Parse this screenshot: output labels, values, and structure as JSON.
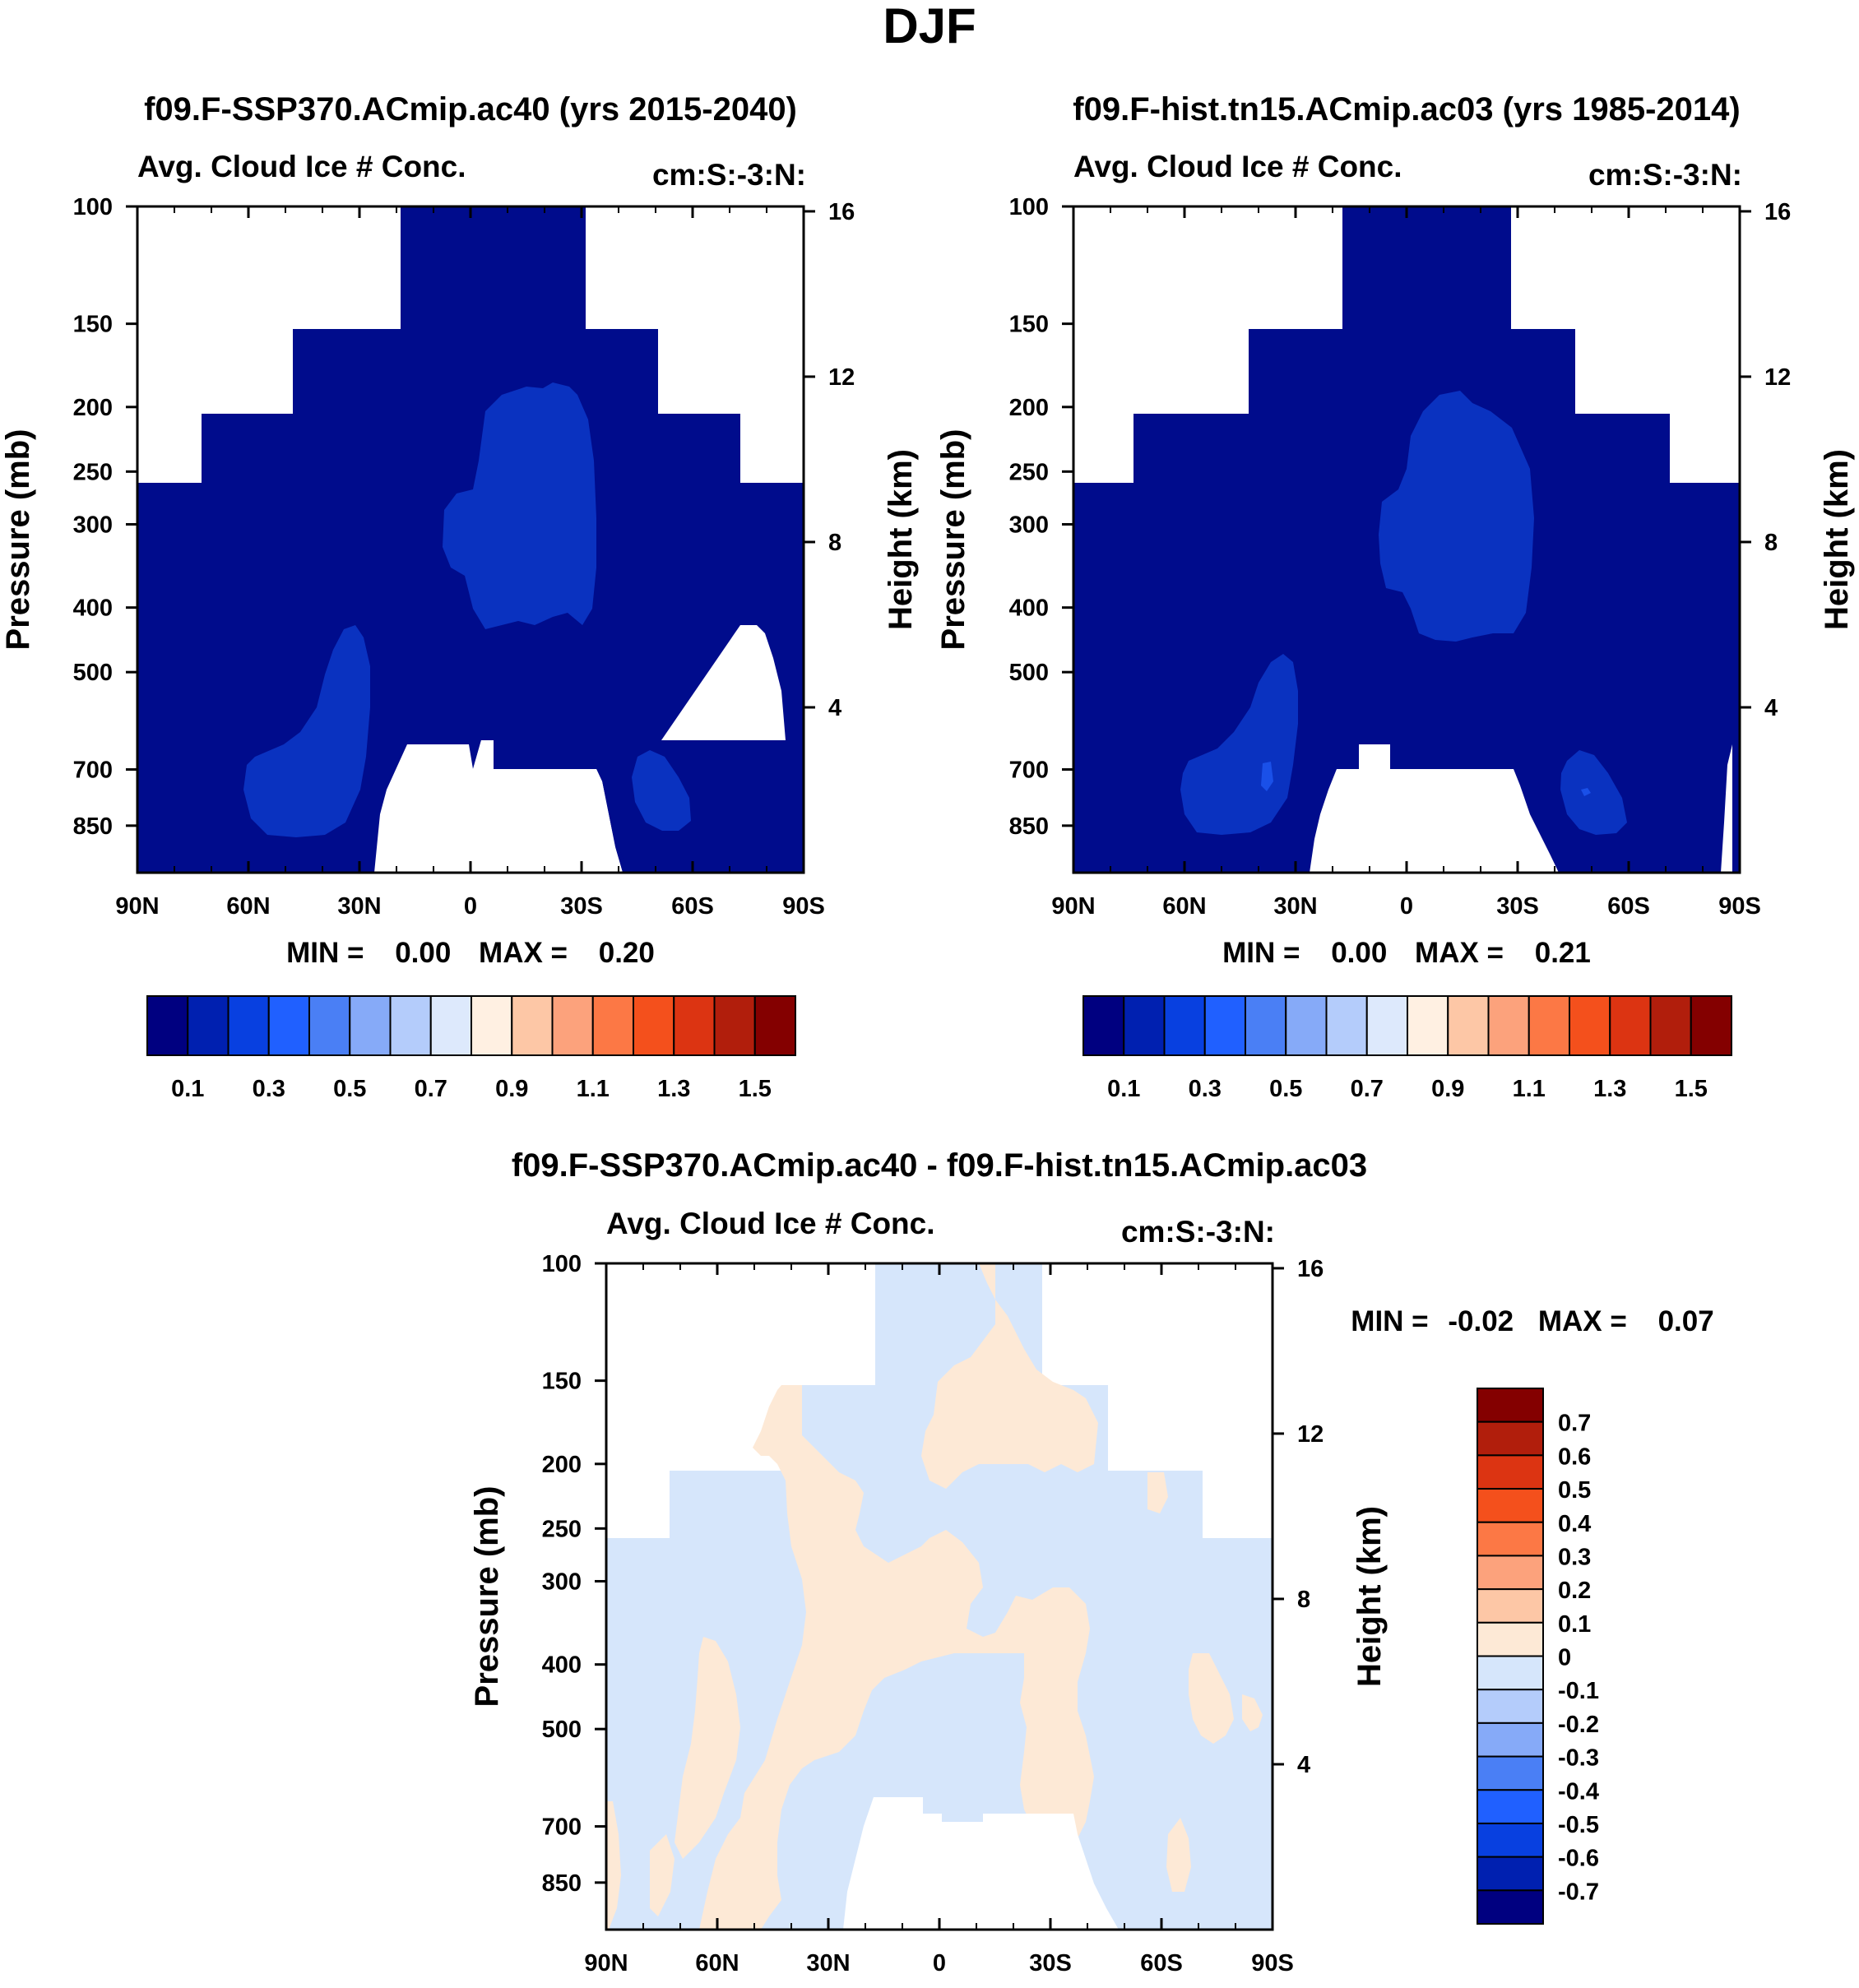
{
  "figure": {
    "title": "DJF"
  },
  "colors": {
    "abs_palette": [
      "#000080",
      "#0020b0",
      "#0840e0",
      "#2060ff",
      "#4a7ff5",
      "#86aaf8",
      "#b4ccfb",
      "#dde9fc",
      "#fff0e2",
      "#fdc7a6",
      "#fca27c",
      "#fc7845",
      "#f4501c",
      "#dc3412",
      "#b11e0c",
      "#840000"
    ],
    "diff_palette": [
      "#000080",
      "#0020b0",
      "#0840e0",
      "#2060ff",
      "#4a7ff5",
      "#86aaf8",
      "#b4ccfb",
      "#d6e6fb",
      "#fde9d6",
      "#fdc7a6",
      "#fca27c",
      "#fc7845",
      "#f4501c",
      "#dc3412",
      "#b11e0c",
      "#840000"
    ],
    "abs_background": "#000c8c",
    "abs_feature": "#0a32c0",
    "abs_feature_inner": "#1a50e8",
    "diff_negative": "#d6e6fb",
    "diff_positive": "#fde9d6"
  },
  "chart_data": [
    {
      "id": "panel1",
      "type": "heatmap",
      "title": "f09.F-SSP370.ACmip.ac40 (yrs 2015-2040)",
      "left_label": "Avg. Cloud Ice # Conc.",
      "right_label": "cm:S:-3:N:",
      "xlabel": "",
      "ylabel": "Pressure (mb)",
      "ylabel_right": "Height (km)",
      "x_ticks": [
        "90N",
        "60N",
        "30N",
        "0",
        "30S",
        "60S",
        "90S"
      ],
      "x_values": [
        90,
        60,
        30,
        0,
        -30,
        -60,
        -90
      ],
      "y_ticks": [
        "100",
        "150",
        "200",
        "250",
        "300",
        "400",
        "500",
        "700",
        "850"
      ],
      "y_values": [
        100,
        150,
        200,
        250,
        300,
        400,
        500,
        700,
        850
      ],
      "y_range": [
        100,
        1000
      ],
      "height_ticks": [
        "16",
        "12",
        "8",
        "4"
      ],
      "height_values_km": [
        16,
        12,
        8,
        4
      ],
      "stats": {
        "min_label": "MIN =",
        "min": "0.00",
        "max_label": "MAX =",
        "max": "0.20"
      },
      "colorbar": {
        "orientation": "horizontal",
        "labels": [
          "0.1",
          "0.3",
          "0.5",
          "0.7",
          "0.9",
          "1.1",
          "1.3",
          "1.5"
        ],
        "levels": [
          0.1,
          0.2,
          0.3,
          0.4,
          0.5,
          0.6,
          0.7,
          0.8,
          0.9,
          1.0,
          1.1,
          1.2,
          1.3,
          1.4,
          1.5
        ]
      }
    },
    {
      "id": "panel2",
      "type": "heatmap",
      "title": "f09.F-hist.tn15.ACmip.ac03 (yrs 1985-2014)",
      "left_label": "Avg. Cloud Ice # Conc.",
      "right_label": "cm:S:-3:N:",
      "xlabel": "",
      "ylabel": "Pressure (mb)",
      "ylabel_right": "Height (km)",
      "x_ticks": [
        "90N",
        "60N",
        "30N",
        "0",
        "30S",
        "60S",
        "90S"
      ],
      "x_values": [
        90,
        60,
        30,
        0,
        -30,
        -60,
        -90
      ],
      "y_ticks": [
        "100",
        "150",
        "200",
        "250",
        "300",
        "400",
        "500",
        "700",
        "850"
      ],
      "y_values": [
        100,
        150,
        200,
        250,
        300,
        400,
        500,
        700,
        850
      ],
      "y_range": [
        100,
        1000
      ],
      "height_ticks": [
        "16",
        "12",
        "8",
        "4"
      ],
      "height_values_km": [
        16,
        12,
        8,
        4
      ],
      "stats": {
        "min_label": "MIN =",
        "min": "0.00",
        "max_label": "MAX =",
        "max": "0.21"
      },
      "colorbar": {
        "orientation": "horizontal",
        "labels": [
          "0.1",
          "0.3",
          "0.5",
          "0.7",
          "0.9",
          "1.1",
          "1.3",
          "1.5"
        ],
        "levels": [
          0.1,
          0.2,
          0.3,
          0.4,
          0.5,
          0.6,
          0.7,
          0.8,
          0.9,
          1.0,
          1.1,
          1.2,
          1.3,
          1.4,
          1.5
        ]
      }
    },
    {
      "id": "panel3",
      "type": "heatmap",
      "title": "f09.F-SSP370.ACmip.ac40 - f09.F-hist.tn15.ACmip.ac03",
      "left_label": "Avg. Cloud Ice # Conc.",
      "right_label": "cm:S:-3:N:",
      "xlabel": "",
      "ylabel": "Pressure (mb)",
      "ylabel_right": "Height (km)",
      "x_ticks": [
        "90N",
        "60N",
        "30N",
        "0",
        "30S",
        "60S",
        "90S"
      ],
      "x_values": [
        90,
        60,
        30,
        0,
        -30,
        -60,
        -90
      ],
      "y_ticks": [
        "100",
        "150",
        "200",
        "250",
        "300",
        "400",
        "500",
        "700",
        "850"
      ],
      "y_values": [
        100,
        150,
        200,
        250,
        300,
        400,
        500,
        700,
        850
      ],
      "y_range": [
        100,
        1000
      ],
      "height_ticks": [
        "16",
        "12",
        "8",
        "4"
      ],
      "height_values_km": [
        16,
        12,
        8,
        4
      ],
      "stats": {
        "min_label": "MIN =",
        "min": "-0.02",
        "max_label": "MAX =",
        "max": "0.07"
      },
      "colorbar": {
        "orientation": "vertical",
        "labels": [
          "0.7",
          "0.6",
          "0.5",
          "0.4",
          "0.3",
          "0.2",
          "0.1",
          "0",
          "-0.1",
          "-0.2",
          "-0.3",
          "-0.4",
          "-0.5",
          "-0.6",
          "-0.7"
        ],
        "levels": [
          0.7,
          0.6,
          0.5,
          0.4,
          0.3,
          0.2,
          0.1,
          0,
          -0.1,
          -0.2,
          -0.3,
          -0.4,
          -0.5,
          -0.6,
          -0.7
        ]
      }
    }
  ]
}
